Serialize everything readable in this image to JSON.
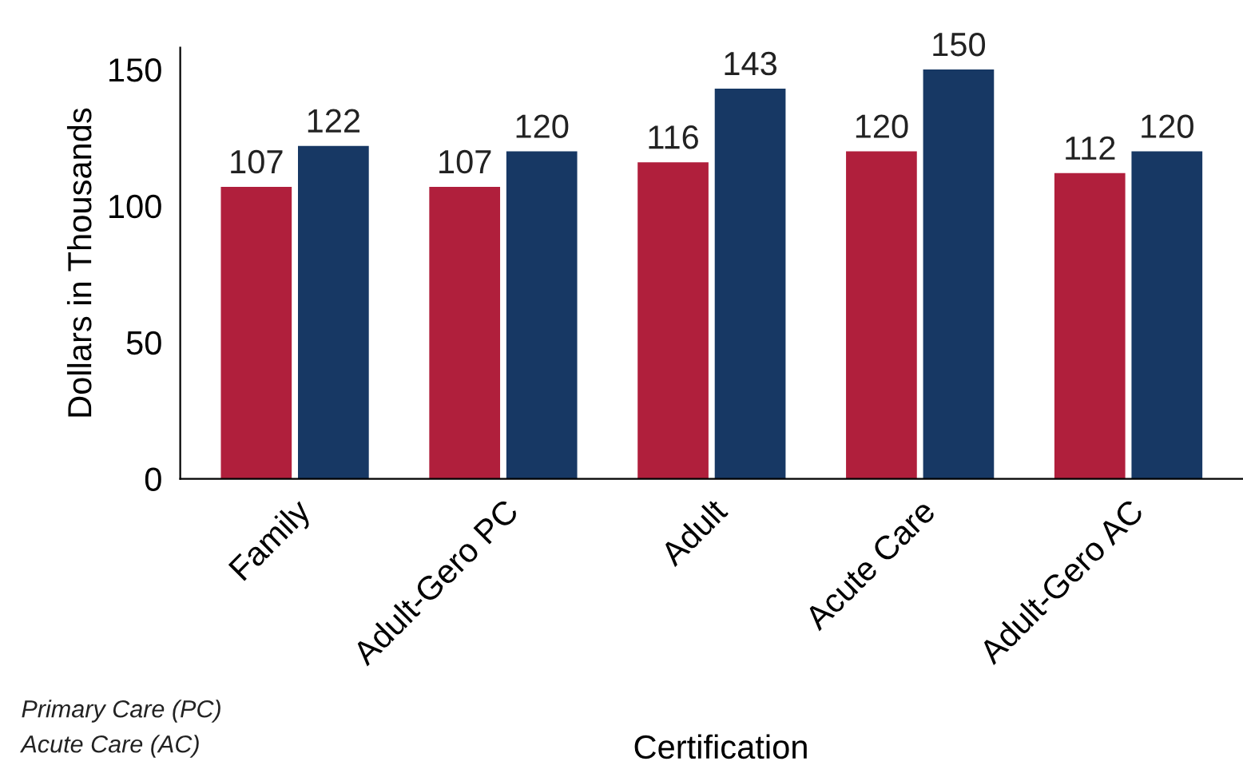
{
  "chart_data": {
    "type": "bar",
    "xlabel": "Certification",
    "ylabel": "Dollars in Thousands",
    "categories": [
      "Family",
      "Adult-Gero PC",
      "Adult",
      "Acute Care",
      "Adult-Gero AC"
    ],
    "series": [
      {
        "color": "#b01f3c",
        "values": [
          107,
          107,
          116,
          120,
          112
        ]
      },
      {
        "color": "#173864",
        "values": [
          122,
          120,
          143,
          150,
          120
        ]
      }
    ],
    "ylim": [
      0,
      158
    ],
    "yticks": [
      0,
      50,
      100,
      150
    ],
    "grid": false,
    "data_labels": true,
    "annotations": [
      "Primary Care (PC)",
      "Acute Care (AC)"
    ]
  }
}
